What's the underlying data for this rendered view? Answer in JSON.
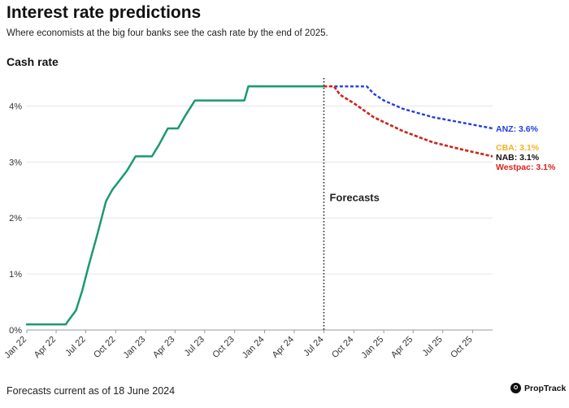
{
  "header": {
    "title": "Interest rate predictions",
    "subtitle": "Where economists at the big four banks see the cash rate by the end of 2025."
  },
  "footer": {
    "note": "Forecasts current as of 18 June 2024",
    "brand": "PropTrack",
    "brand_icon": "proptrack-logo-icon"
  },
  "chart_data": {
    "type": "line",
    "title": "Interest rate predictions",
    "subtitle": "Where economists at the big four banks see the cash rate by the end of 2025.",
    "ylabel": "Cash rate",
    "xlabel": "",
    "ylim": [
      0,
      4.5
    ],
    "yticks": [
      0,
      1,
      2,
      3,
      4
    ],
    "ytick_labels": [
      "0%",
      "1%",
      "2%",
      "3%",
      "4%"
    ],
    "xlim": [
      "2022-01-01",
      "2025-12-01"
    ],
    "xtick_dates": [
      "2022-01-01",
      "2022-04-01",
      "2022-07-01",
      "2022-10-01",
      "2023-01-01",
      "2023-04-01",
      "2023-07-01",
      "2023-10-01",
      "2024-01-01",
      "2024-04-01",
      "2024-07-01",
      "2024-10-01",
      "2025-01-01",
      "2025-04-01",
      "2025-07-01",
      "2025-10-01"
    ],
    "xtick_labels": [
      "Jan 22",
      "Apr 22",
      "Jul 22",
      "Oct 22",
      "Jan 23",
      "Apr 23",
      "Jul 23",
      "Oct 23",
      "Jan 24",
      "Apr 24",
      "Jul 24",
      "Oct 24",
      "Jan 25",
      "Apr 25",
      "Jul 25",
      "Oct 25"
    ],
    "grid": "horizontal",
    "forecast_line": {
      "date": "2024-07-01",
      "label": "Forecasts"
    },
    "series": [
      {
        "key": "actual",
        "color": "#1a9a6e",
        "style": "solid",
        "points": [
          [
            "2022-01-01",
            0.1
          ],
          [
            "2022-05-01",
            0.1
          ],
          [
            "2022-05-05",
            0.14
          ],
          [
            "2022-06-01",
            0.35
          ],
          [
            "2022-06-20",
            0.7
          ],
          [
            "2022-07-10",
            1.15
          ],
          [
            "2022-08-05",
            1.7
          ],
          [
            "2022-09-01",
            2.3
          ],
          [
            "2022-09-20",
            2.5
          ],
          [
            "2022-10-10",
            2.65
          ],
          [
            "2022-11-05",
            2.85
          ],
          [
            "2022-12-01",
            3.1
          ],
          [
            "2023-01-20",
            3.1
          ],
          [
            "2023-02-10",
            3.3
          ],
          [
            "2023-03-10",
            3.6
          ],
          [
            "2023-04-10",
            3.6
          ],
          [
            "2023-05-05",
            3.85
          ],
          [
            "2023-06-01",
            4.1
          ],
          [
            "2023-10-31",
            4.1
          ],
          [
            "2023-11-12",
            4.35
          ],
          [
            "2024-06-30",
            4.35
          ]
        ]
      },
      {
        "key": "anz",
        "name": "ANZ",
        "end_label": "ANZ: 3.6%",
        "color": "#1f3fe0",
        "style": "dashed",
        "points": [
          [
            "2024-07-01",
            4.35
          ],
          [
            "2024-09-01",
            4.35
          ],
          [
            "2024-11-10",
            4.35
          ],
          [
            "2024-12-01",
            4.22
          ],
          [
            "2025-01-01",
            4.1
          ],
          [
            "2025-03-01",
            3.95
          ],
          [
            "2025-06-01",
            3.8
          ],
          [
            "2025-09-01",
            3.7
          ],
          [
            "2025-12-01",
            3.6
          ]
        ]
      },
      {
        "key": "cba",
        "name": "CBA",
        "end_label": "CBA: 3.1%",
        "color": "#f0b323",
        "style": "dashed",
        "points": [
          [
            "2024-07-01",
            4.35
          ],
          [
            "2024-08-01",
            4.35
          ],
          [
            "2024-08-20",
            4.2
          ],
          [
            "2024-10-01",
            4.05
          ],
          [
            "2024-12-01",
            3.8
          ],
          [
            "2025-03-01",
            3.55
          ],
          [
            "2025-06-01",
            3.35
          ],
          [
            "2025-09-01",
            3.22
          ],
          [
            "2025-12-01",
            3.1
          ]
        ]
      },
      {
        "key": "nab",
        "name": "NAB",
        "end_label": "NAB: 3.1%",
        "color": "#111111",
        "style": "dashed",
        "points": [
          [
            "2024-07-01",
            4.35
          ],
          [
            "2024-08-01",
            4.35
          ],
          [
            "2024-08-20",
            4.2
          ],
          [
            "2024-10-01",
            4.05
          ],
          [
            "2024-12-01",
            3.8
          ],
          [
            "2025-03-01",
            3.55
          ],
          [
            "2025-06-01",
            3.35
          ],
          [
            "2025-09-01",
            3.22
          ],
          [
            "2025-12-01",
            3.1
          ]
        ]
      },
      {
        "key": "westpac",
        "name": "Westpac",
        "end_label": "Westpac: 3.1%",
        "color": "#e0201b",
        "style": "dashed",
        "points": [
          [
            "2024-07-01",
            4.35
          ],
          [
            "2024-08-01",
            4.35
          ],
          [
            "2024-08-20",
            4.2
          ],
          [
            "2024-10-01",
            4.05
          ],
          [
            "2024-12-01",
            3.8
          ],
          [
            "2025-03-01",
            3.55
          ],
          [
            "2025-06-01",
            3.35
          ],
          [
            "2025-09-01",
            3.22
          ],
          [
            "2025-12-01",
            3.1
          ]
        ]
      }
    ]
  }
}
